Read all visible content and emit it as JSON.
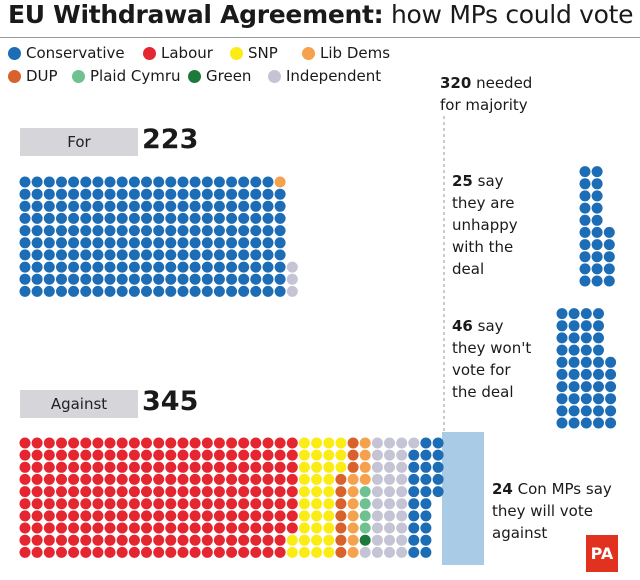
{
  "title": {
    "bold": "EU Withdrawal Agreement:",
    "rest": " how MPs could vote"
  },
  "parties": [
    {
      "name": "Conservative",
      "color": "#1c6db5"
    },
    {
      "name": "Labour",
      "color": "#e52630"
    },
    {
      "name": "SNP",
      "color": "#fbec16"
    },
    {
      "name": "Lib Dems",
      "color": "#f6a14d"
    },
    {
      "name": "DUP",
      "color": "#d9612c"
    },
    {
      "name": "Plaid Cymru",
      "color": "#6fc28f"
    },
    {
      "name": "Green",
      "color": "#1e7a3a"
    },
    {
      "name": "Independent",
      "color": "#c4c4d4"
    }
  ],
  "majority_note": {
    "number": "320",
    "text": " needed\nfor majority"
  },
  "for_block": {
    "label": "For",
    "total": "223"
  },
  "against_block": {
    "label": "Against",
    "total": "345"
  },
  "notes": {
    "unhappy": {
      "number": "25",
      "text": " say\nthey are\nunhappy\nwith the\ndeal"
    },
    "wont_vote": {
      "number": "46",
      "text": " say\nthey won't\nvote for\nthe deal"
    },
    "con_against": {
      "number": "24",
      "text": " Con MPs say\nthey will vote\nagainst"
    }
  },
  "logo_text": "PA",
  "colors": {
    "highlight": "#a9cbe6",
    "label_box": "#d5d5da",
    "majority_line": "#9a9a9a"
  },
  "chart_data": {
    "type": "waffle",
    "title": "EU Withdrawal Agreement: how MPs could vote",
    "majority_threshold": 320,
    "for": {
      "total": 223,
      "series": [
        {
          "name": "Conservative",
          "value": 219
        },
        {
          "name": "Lib Dems",
          "value": 1
        },
        {
          "name": "Independent",
          "value": 3
        }
      ]
    },
    "against": {
      "total": 345,
      "series": [
        {
          "name": "Labour",
          "value": 228
        },
        {
          "name": "SNP",
          "value": 35
        },
        {
          "name": "DUP",
          "value": 10
        },
        {
          "name": "Lib Dems",
          "value": 11
        },
        {
          "name": "Plaid Cymru",
          "value": 4
        },
        {
          "name": "Green",
          "value": 1
        },
        {
          "name": "Independent",
          "value": 32
        },
        {
          "name": "Conservative",
          "value": 24
        }
      ]
    },
    "conservative_rebels": [
      {
        "label": "say they are unhappy with the deal",
        "value": 25
      },
      {
        "label": "say they won't vote for the deal",
        "value": 46
      },
      {
        "label": "Con MPs say they will vote against",
        "value": 24
      }
    ]
  }
}
